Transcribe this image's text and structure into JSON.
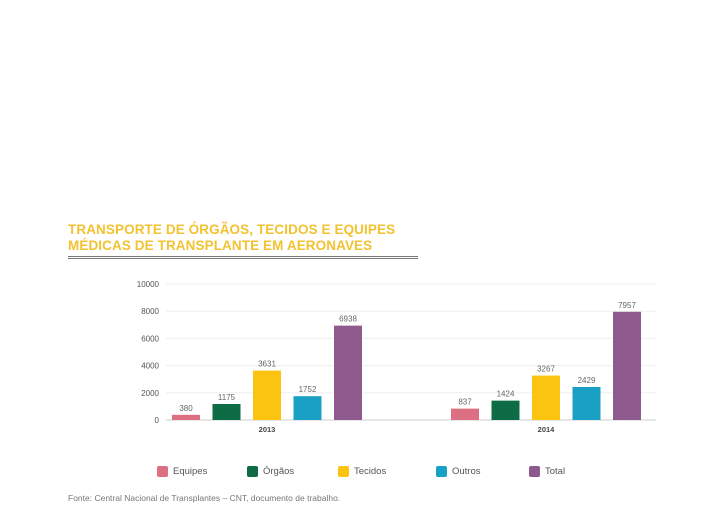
{
  "title_line1": "TRANSPORTE DE ÓRGÃOS, TECIDOS E EQUIPES",
  "title_line2": "MÉDICAS DE TRANSPLANTE EM AERONAVES",
  "source": "Fonte: Central Nacional de Transplantes – CNT, documento de trabalho.",
  "colors": {
    "title": "#f2c230",
    "Equipes": "#dd6f82",
    "Órgãos": "#0d6b45",
    "Tecidos": "#fbc410",
    "Outros": "#1aa0c4",
    "Total": "#8e5a8e"
  },
  "chart_data": {
    "type": "bar",
    "categories": [
      "2013",
      "2014"
    ],
    "series": [
      {
        "name": "Equipes",
        "values": [
          380,
          837
        ]
      },
      {
        "name": "Órgãos",
        "values": [
          1175,
          1424
        ]
      },
      {
        "name": "Tecidos",
        "values": [
          3631,
          3267
        ]
      },
      {
        "name": "Outros",
        "values": [
          1752,
          2429
        ]
      },
      {
        "name": "Total",
        "values": [
          6938,
          7957
        ]
      }
    ],
    "ylim": [
      0,
      10000
    ],
    "yticks": [
      "0",
      "2000",
      "4000",
      "6000",
      "8000",
      "10000"
    ],
    "legend_position": "bottom",
    "grid": true
  }
}
